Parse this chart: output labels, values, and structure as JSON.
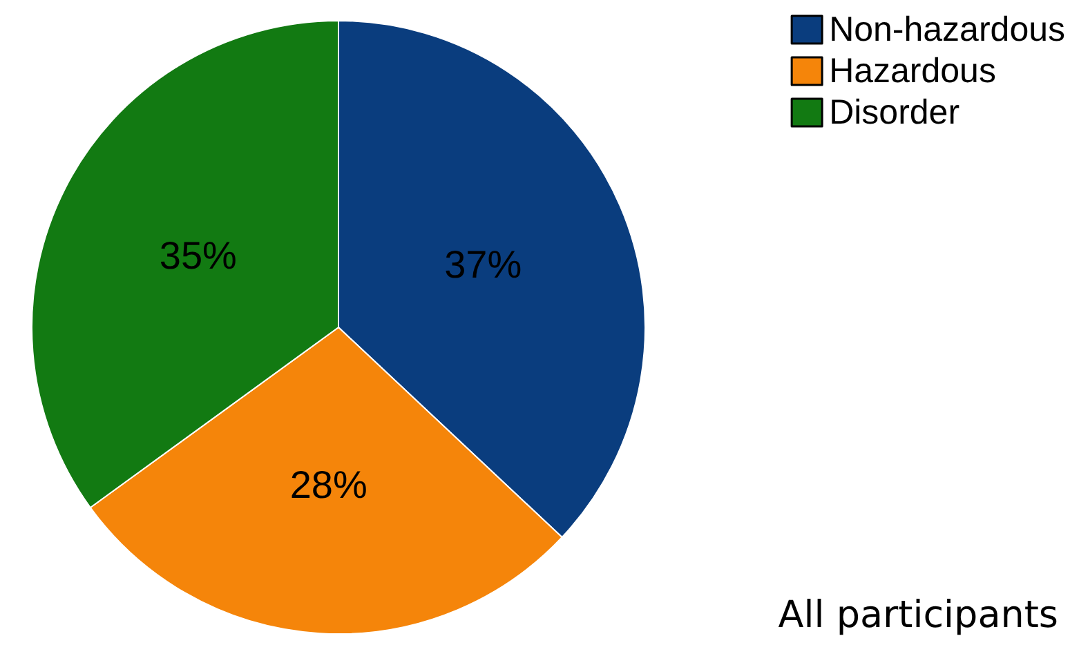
{
  "chart_data": {
    "type": "pie",
    "categories": [
      "Non-hazardous",
      "Hazardous",
      "Disorder"
    ],
    "values": [
      37,
      28,
      35
    ],
    "colors": [
      "#0a3d7e",
      "#f5850a",
      "#127a12"
    ],
    "value_labels": [
      "37%",
      "28%",
      "35%"
    ],
    "legend": "top right",
    "annotations": [
      "All participants"
    ]
  }
}
